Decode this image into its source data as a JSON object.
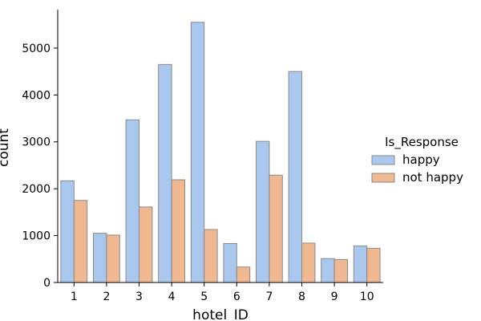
{
  "chart_data": {
    "type": "bar",
    "title": "",
    "xlabel": "hotel_ID",
    "ylabel": "count",
    "categories": [
      "1",
      "2",
      "3",
      "4",
      "5",
      "6",
      "7",
      "8",
      "9",
      "10"
    ],
    "series": [
      {
        "name": "happy",
        "color": "#aac8ee",
        "values": [
          2170,
          1050,
          3470,
          4650,
          5550,
          830,
          3010,
          4500,
          510,
          780
        ]
      },
      {
        "name": "not happy",
        "color": "#f0b890",
        "values": [
          1750,
          1010,
          1610,
          2190,
          1130,
          330,
          2290,
          840,
          490,
          730
        ]
      }
    ],
    "ylim": [
      0,
      5820
    ],
    "yticks": [
      "0",
      "1000",
      "2000",
      "3000",
      "4000",
      "5000"
    ],
    "grid": false,
    "legend": {
      "title": "Is_Response",
      "placement": "right"
    }
  }
}
